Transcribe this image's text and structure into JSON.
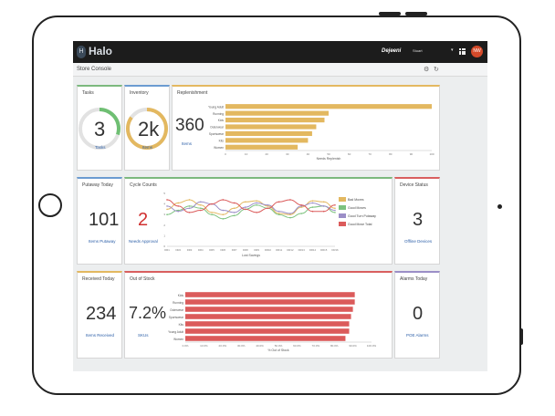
{
  "app": {
    "logo_text": "Halo",
    "logo_mark": "H",
    "brand": "Dejeeni",
    "user": "Stuart",
    "avatar": "NW",
    "icons": [
      "caret-down-icon",
      "apps-grid-icon",
      "user-avatar"
    ]
  },
  "page": {
    "title": "Store Console"
  },
  "colors": {
    "accent_blue": "#2c5fa8",
    "bar_gold": "#e3b860",
    "bar_red": "#db5b5b",
    "ring_green": "#6fbf73",
    "ring_gold": "#e3b860",
    "topbar": "#1c1c1c",
    "card_border_green": "#7cb97e",
    "card_border_blue": "#6b9bd1",
    "card_border_gold": "#e3b860",
    "card_border_red": "#d95f5f",
    "card_border_purple": "#9b8ec7"
  },
  "tasks": {
    "title": "Tasks",
    "value": "3",
    "link": "Tasks",
    "fraction": 0.3
  },
  "inventory": {
    "title": "Inventory",
    "value": "2k",
    "link": "Items",
    "fraction": 0.85
  },
  "replenishment": {
    "title": "Replenishment",
    "value": "360",
    "link": "Items"
  },
  "putaway": {
    "title": "Putaway Today",
    "value": "101",
    "link": "Items Putaway"
  },
  "cycle": {
    "title": "Cycle Counts",
    "value": "2",
    "link": "Needs Approval"
  },
  "device": {
    "title": "Device Status",
    "value": "3",
    "link": "Offline Devices"
  },
  "received": {
    "title": "Received Today",
    "value": "234",
    "link": "Items Received"
  },
  "oos": {
    "title": "Out of Stock",
    "value": "7.2%",
    "link": "SKUs"
  },
  "alarm": {
    "title": "Alarms Today",
    "value": "0",
    "link": "POE Alarms"
  },
  "chart_data": [
    {
      "type": "bar",
      "orientation": "horizontal",
      "categories": [
        "Young Adult",
        "Running",
        "Kids",
        "Outerwear",
        "Sportswear",
        "Kits",
        "Women"
      ],
      "values": [
        100,
        50,
        48,
        44,
        42,
        40,
        35
      ],
      "xlim": [
        0,
        100
      ],
      "x_ticks": [
        "0",
        "10",
        "20",
        "30",
        "40",
        "50",
        "60",
        "70",
        "80",
        "90",
        "100"
      ],
      "xlabel": "Needs Replenish",
      "color": "#e3b860",
      "grid": false
    },
    {
      "type": "line",
      "x": [
        "DR1",
        "DR2",
        "DR3",
        "DR4",
        "DR5",
        "DR6",
        "DR7",
        "DR8",
        "DR9",
        "DR10",
        "DR11",
        "DR12",
        "DR13",
        "DR14",
        "DR15",
        "DR16"
      ],
      "y_ticks": [
        "0",
        "1",
        "2",
        "3",
        "4",
        "5"
      ],
      "ylim": [
        0,
        5
      ],
      "xlabel": "Lost Savings",
      "series": [
        {
          "name": "Bad Moves",
          "color": "#e3b860",
          "values": [
            3.5,
            4.1,
            4.4,
            3.9,
            3.2,
            3.0,
            3.6,
            4.2,
            4.3,
            3.8,
            3.1,
            3.0,
            3.7,
            4.3,
            4.2,
            3.6
          ]
        },
        {
          "name": "Good Moves",
          "color": "#7cc27e",
          "values": [
            3.0,
            3.4,
            3.8,
            3.6,
            3.0,
            2.6,
            2.9,
            3.5,
            3.9,
            3.6,
            3.0,
            2.7,
            3.1,
            3.7,
            3.8,
            3.2
          ]
        },
        {
          "name": "Good Turn Putaway",
          "color": "#9b8ec7",
          "values": [
            3.8,
            3.3,
            3.6,
            4.2,
            4.0,
            3.4,
            3.2,
            3.7,
            4.1,
            3.9,
            3.3,
            3.1,
            3.8,
            4.1,
            3.8,
            3.4
          ]
        },
        {
          "name": "Good Move Total",
          "color": "#db5b5b",
          "values": [
            4.4,
            3.8,
            3.2,
            3.4,
            4.0,
            4.4,
            4.1,
            3.5,
            3.2,
            3.6,
            4.2,
            4.4,
            3.9,
            3.3,
            3.3,
            3.9
          ]
        }
      ],
      "legend": "right",
      "grid": false
    },
    {
      "type": "bar",
      "orientation": "horizontal",
      "categories": [
        "Kids",
        "Running",
        "Outerwear",
        "Sportswear",
        "Kits",
        "Young Adult",
        "Women"
      ],
      "values": [
        0.91,
        0.91,
        0.9,
        0.89,
        0.88,
        0.88,
        0.86
      ],
      "xlim": [
        0,
        1
      ],
      "x_ticks": [
        "0.0%",
        "10.0%",
        "20.0%",
        "30.0%",
        "40.0%",
        "50.0%",
        "60.0%",
        "70.0%",
        "80.0%",
        "90.0%",
        "100.0%"
      ],
      "xlabel": "% Out of Stock",
      "color": "#db5b5b",
      "grid": false
    }
  ]
}
